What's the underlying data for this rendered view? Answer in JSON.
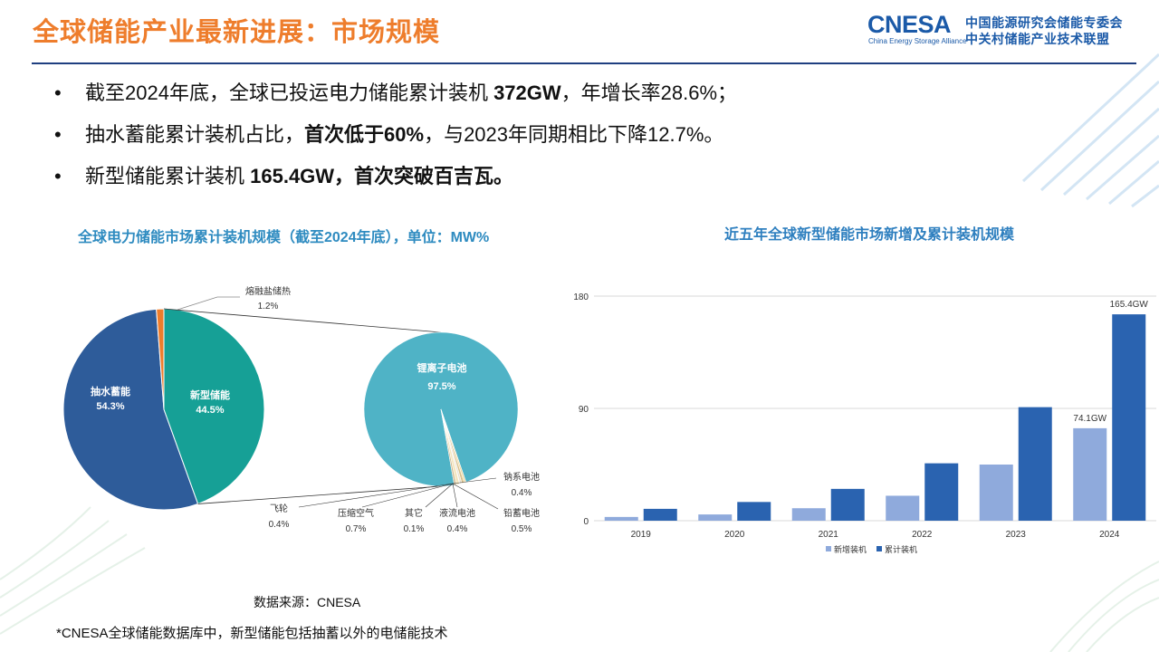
{
  "header": {
    "title_a": "全球储能产业最新进展：",
    "title_b": "市场规模",
    "logo": {
      "mark": "CNESA",
      "tagline": "China Energy Storage Alliance",
      "org_line1": "中国能源研究会储能专委会",
      "org_line2": "中关村储能产业技术联盟"
    }
  },
  "bullets": [
    {
      "pre": "截至2024年底，全球已投运电力储能累计装机 ",
      "bold": "372GW",
      "post": "，年增长率28.6%；"
    },
    {
      "pre": "抽水蓄能累计装机占比，",
      "bold": "首次低于60%",
      "post": "，与2023年同期相比下降12.7%。"
    },
    {
      "pre": "新型储能累计装机 ",
      "bold": "165.4GW，首次突破百吉瓦。",
      "post": ""
    }
  ],
  "left_chart_title": "全球电力储能市场累计装机规模（截至2024年底），单位：MW%",
  "right_chart_title": "近五年全球新型储能市场新增及累计装机规模",
  "source": "数据来源：CNESA",
  "footnote": "*CNESA全球储能数据库中，新型储能包括抽蓄以外的电储能技术",
  "colors": {
    "accent_orange": "#ee7d2c",
    "brand_blue": "#1b5aa8",
    "pumped_hydro": "#2e5c9a",
    "new_storage": "#16a096",
    "molten_salt": "#ee7d2c",
    "lithium": "#4fb3c6",
    "new_added_bar": "#8faadc",
    "cumulative_bar": "#2a63b0"
  },
  "chart_data": [
    {
      "type": "pie",
      "title": "全球电力储能市场累计装机规模（截至2024年底），单位：MW%",
      "slices": [
        {
          "label": "抽水蓄能",
          "value": 54.3,
          "display": "54.3%"
        },
        {
          "label": "新型储能",
          "value": 44.5,
          "display": "44.5%"
        },
        {
          "label": "熔融盐储热",
          "value": 1.2,
          "display": "1.2%"
        }
      ]
    },
    {
      "type": "pie",
      "title": "新型储能",
      "slices": [
        {
          "label": "锂离子电池",
          "value": 97.5,
          "display": "97.5%"
        },
        {
          "label": "钠系电池",
          "value": 0.4,
          "display": "0.4%"
        },
        {
          "label": "铅蓄电池",
          "value": 0.5,
          "display": "0.5%"
        },
        {
          "label": "液流电池",
          "value": 0.4,
          "display": "0.4%"
        },
        {
          "label": "其它",
          "value": 0.1,
          "display": "0.1%"
        },
        {
          "label": "压缩空气",
          "value": 0.7,
          "display": "0.7%"
        },
        {
          "label": "飞轮",
          "value": 0.4,
          "display": "0.4%"
        }
      ]
    },
    {
      "type": "bar",
      "title": "近五年全球新型储能市场新增及累计装机规模",
      "categories": [
        "2019",
        "2020",
        "2021",
        "2022",
        "2023",
        "2024"
      ],
      "series": [
        {
          "name": "新增装机",
          "values": [
            3,
            5,
            10,
            20,
            45,
            74.1
          ]
        },
        {
          "name": "累计装机",
          "values": [
            9.5,
            15,
            25.5,
            46,
            91,
            165.4
          ]
        }
      ],
      "data_labels": [
        {
          "series": 0,
          "index": 5,
          "text": "74.1GW"
        },
        {
          "series": 1,
          "index": 5,
          "text": "165.4GW"
        }
      ],
      "yticks": [
        "0",
        "90",
        "180"
      ],
      "ylim": [
        0,
        180
      ],
      "grid": true,
      "legend": "bottom"
    }
  ]
}
